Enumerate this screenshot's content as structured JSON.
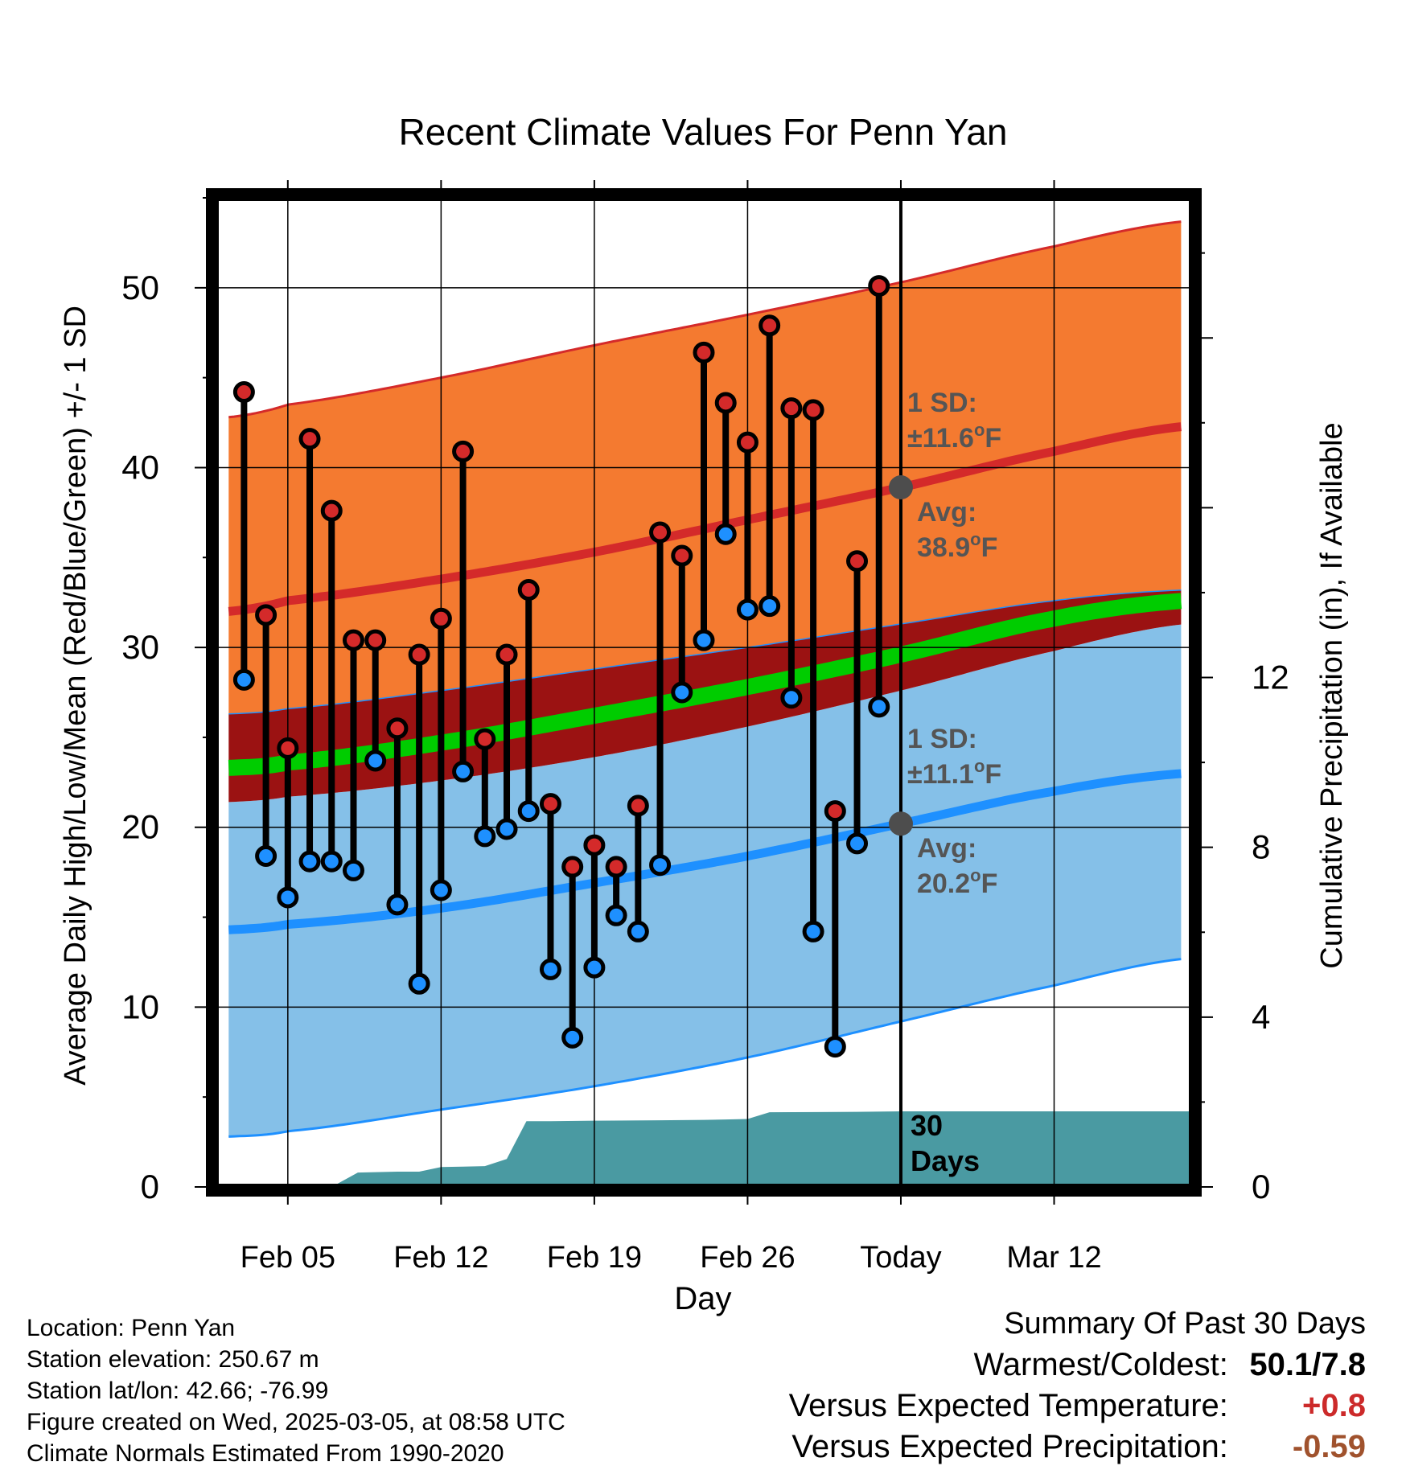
{
  "chart_data": {
    "type": "line",
    "title": "Recent Climate Values For Penn Yan",
    "xlabel": "Day",
    "ylabel": "Average Daily High/Low/Mean (Red/Blue/Green) +/- 1 SD",
    "y2label": "Cumulative Precipitation (in), If Available",
    "ylim": [
      0,
      55
    ],
    "y2lim": [
      0,
      23.3
    ],
    "xlim": [
      -3.3,
      41.3
    ],
    "x_tick_labels": [
      {
        "day": 0,
        "label": "Feb 05"
      },
      {
        "day": 7,
        "label": "Feb 12"
      },
      {
        "day": 14,
        "label": "Feb 19"
      },
      {
        "day": 21,
        "label": "Feb 26"
      },
      {
        "day": 28,
        "label": "Today"
      },
      {
        "day": 35,
        "label": "Mar 12"
      }
    ],
    "y_ticks": [
      "0",
      "10",
      "20",
      "30",
      "40",
      "50"
    ],
    "y2_ticks": [
      "0",
      "4",
      "8",
      "12"
    ],
    "today_day": 28,
    "window_label": "30 Days",
    "normals_days": [
      -2.7,
      0,
      7,
      14,
      21,
      28,
      35,
      41
    ],
    "normal_high": [
      32.0,
      32.6,
      33.8,
      35.3,
      37.1,
      38.9,
      40.9,
      42.3
    ],
    "normal_high_upper": [
      42.8,
      43.5,
      45.0,
      46.8,
      48.5,
      50.3,
      52.3,
      53.7
    ],
    "normal_high_lower": [
      26.3,
      26.6,
      27.6,
      28.8,
      30.0,
      31.3,
      32.6,
      33.2
    ],
    "normal_mean": [
      23.3,
      23.6,
      24.7,
      26.2,
      27.8,
      29.6,
      31.6,
      32.6
    ],
    "normal_low": [
      14.3,
      14.6,
      15.5,
      16.9,
      18.4,
      20.2,
      22.0,
      23.0
    ],
    "normal_low_upper": [
      21.4,
      21.7,
      22.6,
      23.9,
      25.6,
      27.6,
      29.8,
      31.3
    ],
    "normal_low_lower": [
      2.8,
      3.1,
      4.3,
      5.6,
      7.2,
      9.2,
      11.2,
      12.7
    ],
    "high_sd_label": "1 SD:",
    "high_sd_value": "±11.6",
    "low_sd_label": "1 SD:",
    "low_sd_value": "±11.1",
    "avg_label": "Avg:",
    "high_avg_value": "38.9",
    "low_avg_value": "20.2",
    "degree_unit": "o",
    "unit_letter": "F",
    "observed": {
      "days": [
        -2,
        -1,
        0,
        1,
        2,
        3,
        4,
        5,
        6,
        7,
        8,
        9,
        10,
        11,
        12,
        13,
        14,
        15,
        16,
        17,
        18,
        19,
        20,
        21,
        22,
        23,
        24,
        25,
        26,
        27
      ],
      "high": [
        44.2,
        31.8,
        24.4,
        41.6,
        37.6,
        30.4,
        30.4,
        25.5,
        29.6,
        31.6,
        40.9,
        24.9,
        29.6,
        33.2,
        21.3,
        17.8,
        19.0,
        17.8,
        21.2,
        36.4,
        35.1,
        46.4,
        43.6,
        41.4,
        47.9,
        43.3,
        43.2,
        20.9,
        34.8,
        50.1
      ],
      "low": [
        28.2,
        18.4,
        16.1,
        18.1,
        18.1,
        17.6,
        23.7,
        15.7,
        11.3,
        16.5,
        23.1,
        19.5,
        19.9,
        20.9,
        12.1,
        8.3,
        12.2,
        15.1,
        14.2,
        17.9,
        27.5,
        30.4,
        36.3,
        32.1,
        32.3,
        27.2,
        14.2,
        7.8,
        19.1,
        26.7
      ]
    },
    "precip": {
      "days": [
        -3.3,
        2.0,
        3.2,
        5.0,
        6.0,
        7.0,
        8.0,
        9.0,
        10.0,
        10.9,
        11.0,
        12.0,
        14.0,
        17.0,
        19.0,
        20.0,
        21.0,
        22.0,
        26.0,
        28.0,
        41.3
      ],
      "cumulative": [
        0.0,
        0.0,
        0.34,
        0.36,
        0.36,
        0.47,
        0.48,
        0.49,
        0.66,
        1.55,
        1.55,
        1.55,
        1.56,
        1.57,
        1.58,
        1.59,
        1.6,
        1.76,
        1.77,
        1.78,
        1.78
      ]
    }
  },
  "info": {
    "location": "Location: Penn Yan",
    "elevation": "Station elevation: 250.67 m",
    "latlon": "Station lat/lon: 42.66; -76.99",
    "created": "Figure created on Wed, 2025-03-05, at 08:58 UTC",
    "normals": "Climate Normals Estimated From 1990-2020"
  },
  "summary": {
    "title": "Summary Of Past 30 Days",
    "warmest_label": "Warmest/Coldest:",
    "warmest_value": "50.1/7.8",
    "temp_label": "Versus Expected Temperature:",
    "temp_value": "+0.8",
    "precip_label": "Versus Expected Precipitation:",
    "precip_value": "-0.59",
    "colors": {
      "temp": "#cc2a2a",
      "precip": "#a0522d"
    }
  },
  "colors": {
    "high_band": "#f47a30",
    "high_line": "#d42a2a",
    "mean_band": "#9b1212",
    "mean_line": "#00cc00",
    "low_band": "#85c0e8",
    "low_line": "#1e90ff",
    "precip": "#4a9aa2",
    "point_high": "#d42a2a",
    "point_low": "#1e90ff",
    "today_marker": "#4d4d4d",
    "annotation": "#555555"
  }
}
